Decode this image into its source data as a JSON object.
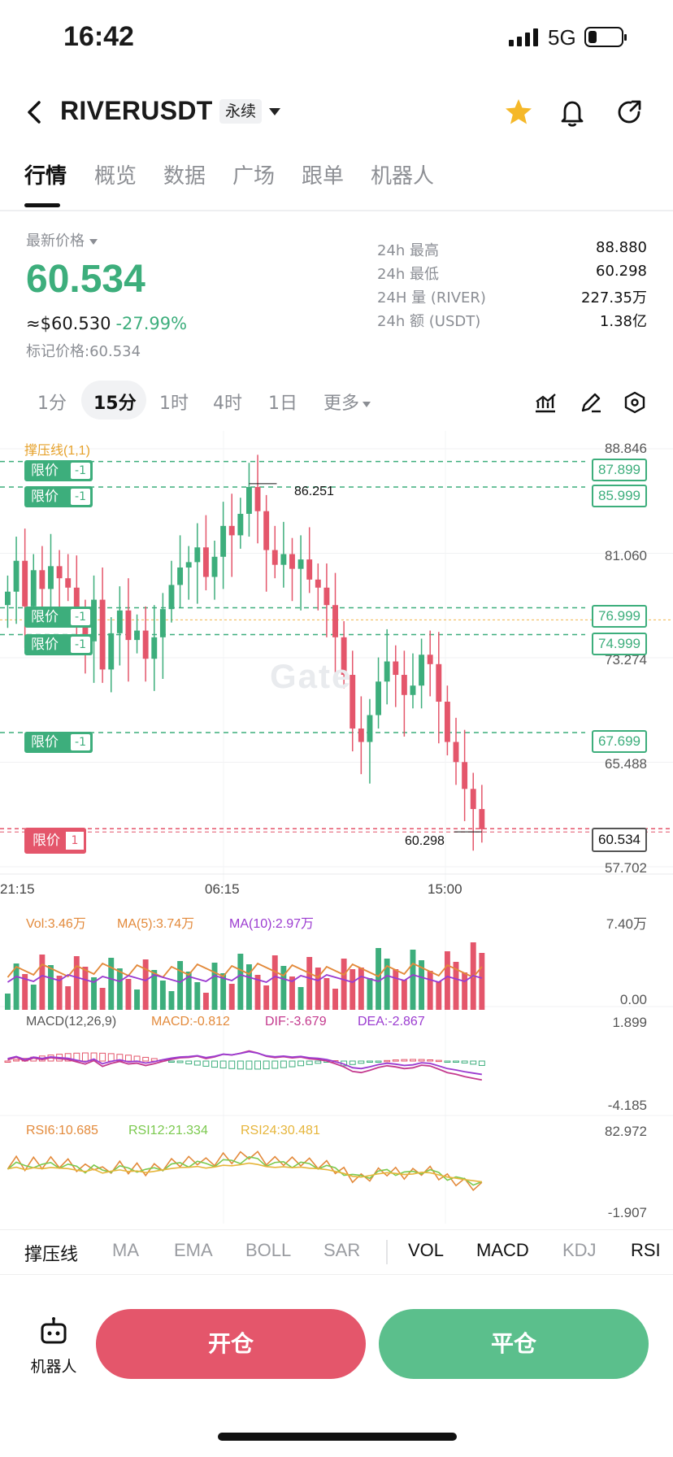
{
  "status_bar": {
    "time": "16:42",
    "network": "5G"
  },
  "header": {
    "pair": "RIVERUSDT",
    "contract_type": "永续",
    "icons": [
      "back-icon",
      "star-icon",
      "bell-icon",
      "share-icon"
    ],
    "favorite_color": "#f5b829"
  },
  "tabs": [
    "行情",
    "概览",
    "数据",
    "广场",
    "跟单",
    "机器人"
  ],
  "price": {
    "label": "最新价格",
    "last": "60.534",
    "usd": "≈$60.530",
    "change": "-27.99%",
    "mark_label": "标记价格:",
    "mark_value": "60.534"
  },
  "stats": [
    {
      "label": "24h  最高",
      "value": "88.880"
    },
    {
      "label": "24h  最低",
      "value": "60.298"
    },
    {
      "label": "24H  量 (RIVER)",
      "value": "227.35万"
    },
    {
      "label": "24h  额 (USDT)",
      "value": "1.38亿"
    }
  ],
  "timeframes": [
    "1分",
    "15分",
    "1时",
    "4时",
    "1日",
    "更多"
  ],
  "timeframe_active": "15分",
  "tool_icons": [
    "indicator-icon",
    "draw-icon",
    "settings-hex-icon"
  ],
  "chart": {
    "sr_label": "撑压线(1,1)",
    "watermark": "Gate",
    "high_marker": "86.251",
    "low_marker": "60.298",
    "axis_prices": [
      "88.846",
      "81.060",
      "73.274",
      "65.488",
      "57.702"
    ],
    "time_labels": [
      "21:15",
      "06:15",
      "15:00"
    ],
    "order_tag_label": "限价",
    "order_tag_qty": "-1",
    "orders": [
      "87.899",
      "85.999",
      "76.999",
      "74.999",
      "67.699"
    ],
    "position_tag_label": "限价",
    "position_qty": "1",
    "current_price": "60.534",
    "colors": {
      "up": "#3dae7c",
      "down": "#e4566b"
    }
  },
  "chart_data": [
    {
      "type": "candlestick",
      "interval": "15分",
      "x_labels": [
        "21:15",
        "06:15",
        "15:00"
      ],
      "y_ticks": [
        88.846,
        81.06,
        73.274,
        65.488,
        57.702
      ],
      "ylim": [
        57.702,
        88.846
      ],
      "high": 86.251,
      "low": 60.298,
      "last": 60.534,
      "series": [
        {
          "values": [
            78.2,
            80.5,
            77.1,
            79.8,
            78.4,
            80.1,
            79.2,
            78.5,
            76.4,
            74.5,
            77.6,
            72.4,
            75.1,
            76.8,
            74.6,
            75.3,
            73.2,
            74.8,
            76.9,
            78.7,
            80.0,
            80.4,
            81.5,
            79.3,
            80.8,
            83.1,
            82.4,
            84.0,
            86.0,
            84.2,
            81.3,
            80.2,
            81.0,
            79.9,
            80.6,
            79.1,
            78.5,
            77.2,
            74.8,
            72.0,
            68.0,
            67.0,
            69.0,
            71.5,
            73.0,
            72.0,
            70.5,
            71.2,
            73.5,
            72.8,
            70.0,
            67.0,
            65.5,
            63.5,
            62.0,
            60.5
          ]
        }
      ]
    },
    {
      "type": "bar",
      "title": "Vol:3.46万",
      "series": [
        {
          "name": "MA(5):3.74万"
        },
        {
          "name": "MA(10):2.97万"
        }
      ],
      "y_ticks": [
        "7.40万",
        "0.00"
      ]
    },
    {
      "type": "line",
      "title": "MACD(12,26,9)",
      "series": [
        {
          "name": "MACD:-0.812",
          "color": "#e38a3b"
        },
        {
          "name": "DIF:-3.679",
          "color": "#c43a8e"
        },
        {
          "name": "DEA:-2.867",
          "color": "#9b3bd0"
        }
      ],
      "y_ticks": [
        "1.899",
        "-4.185"
      ]
    },
    {
      "type": "line",
      "title": "RSI",
      "series": [
        {
          "name": "RSI6:10.685",
          "color": "#e38a3b"
        },
        {
          "name": "RSI12:21.334",
          "color": "#7bc94e"
        },
        {
          "name": "RSI24:30.481",
          "color": "#e6b53a"
        }
      ],
      "y_ticks": [
        "82.972",
        "-1.907"
      ]
    }
  ],
  "indicators": [
    "撑压线",
    "MA",
    "EMA",
    "BOLL",
    "SAR",
    "VOL",
    "MACD",
    "KDJ",
    "RSI"
  ],
  "indicators_on": [
    "撑压线",
    "VOL",
    "MACD",
    "RSI"
  ],
  "bottom": {
    "robot_label": "机器人",
    "open_label": "开仓",
    "close_label": "平仓"
  }
}
